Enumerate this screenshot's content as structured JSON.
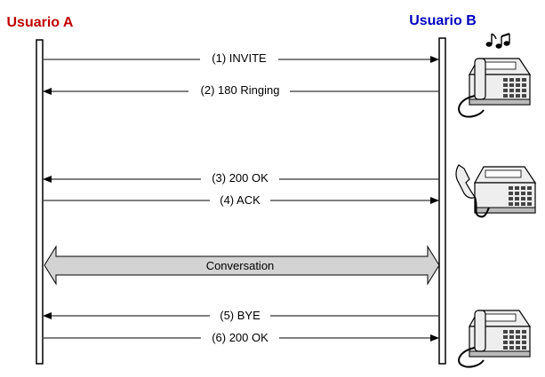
{
  "participants": {
    "a": {
      "name": "Usuario A",
      "color": "#c00000"
    },
    "b": {
      "name": "Usuario B",
      "color": "#0000c0"
    }
  },
  "messages": [
    {
      "label": "(1) INVITE",
      "from": "a",
      "to": "b"
    },
    {
      "label": "(2) 180 Ringing",
      "from": "b",
      "to": "a"
    },
    {
      "label": "(3) 200 OK",
      "from": "b",
      "to": "a"
    },
    {
      "label": "(4) ACK",
      "from": "a",
      "to": "b"
    },
    {
      "label": "(5) BYE",
      "from": "b",
      "to": "a"
    },
    {
      "label": "(6) 200 OK",
      "from": "a",
      "to": "b"
    }
  ],
  "conversation": {
    "label": "Conversation",
    "fill": "#d3d3d3"
  },
  "phones": [
    {
      "state": "ringing",
      "icon": "ringing-phone-icon"
    },
    {
      "state": "off-hook",
      "icon": "off-hook-phone-icon"
    },
    {
      "state": "on-hook",
      "icon": "on-hook-phone-icon"
    }
  ]
}
